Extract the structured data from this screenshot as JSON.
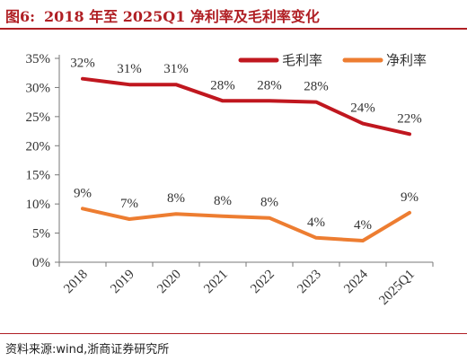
{
  "figure": {
    "number": "图6:",
    "title": "2018 年至 2025Q1 净利率及毛利率变化"
  },
  "source": {
    "label": "资料来源:",
    "text": "wind,浙商证券研究所"
  },
  "colors": {
    "accent": "#b01f24",
    "gross": "#c0171f",
    "net": "#ed7d31"
  },
  "chart_data": {
    "type": "line",
    "categories": [
      "2018",
      "2019",
      "2020",
      "2021",
      "2022",
      "2023",
      "2024",
      "2025Q1"
    ],
    "y_ticks": [
      "0%",
      "5%",
      "10%",
      "15%",
      "20%",
      "25%",
      "30%",
      "35%"
    ],
    "ylim": [
      0,
      35
    ],
    "grid": false,
    "legend_position": "top-right",
    "series": [
      {
        "name": "毛利率",
        "color": "#c0171f",
        "values": [
          31.5,
          30.5,
          30.5,
          27.7,
          27.7,
          27.5,
          23.8,
          22.0
        ],
        "labels": [
          "32%",
          "31%",
          "31%",
          "28%",
          "28%",
          "28%",
          "24%",
          "22%"
        ]
      },
      {
        "name": "净利率",
        "color": "#ed7d31",
        "values": [
          9.2,
          7.4,
          8.3,
          7.9,
          7.6,
          4.2,
          3.7,
          8.5
        ],
        "labels": [
          "9%",
          "7%",
          "8%",
          "8%",
          "8%",
          "4%",
          "4%",
          "9%"
        ]
      }
    ]
  }
}
